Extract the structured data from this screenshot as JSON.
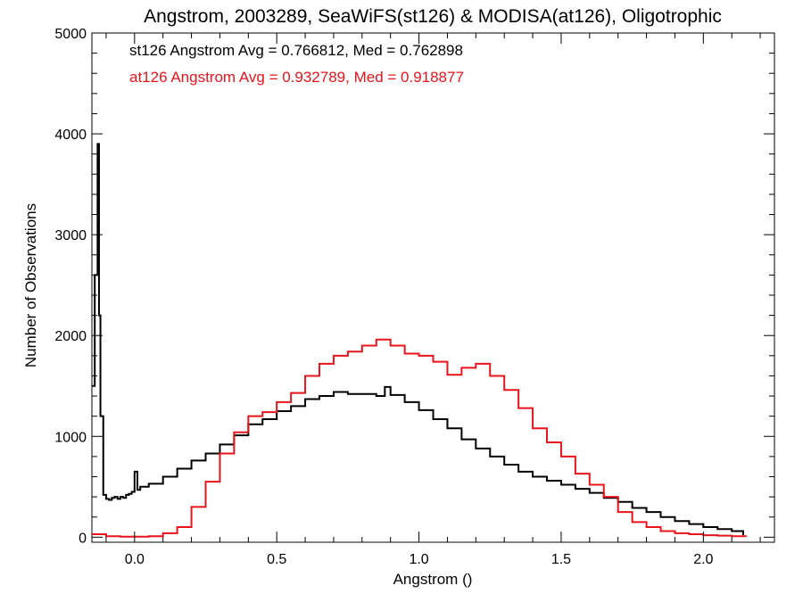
{
  "chart_data": {
    "type": "line",
    "title": "Angstrom, 2003289, SeaWiFS(st126) & MODISA(at126), Oligotrophic",
    "xlabel": "Angstrom ()",
    "ylabel": "Number of Observations",
    "xlim": [
      -0.15,
      2.25
    ],
    "ylim": [
      -50,
      5000
    ],
    "xticks": [
      0.0,
      0.5,
      1.0,
      1.5,
      2.0
    ],
    "xtick_labels": [
      "0.0",
      "0.5",
      "1.0",
      "1.5",
      "2.0"
    ],
    "yticks": [
      0,
      1000,
      2000,
      3000,
      4000,
      5000
    ],
    "ytick_labels": [
      "0",
      "1000",
      "2000",
      "3000",
      "4000",
      "5000"
    ],
    "step": true,
    "grid": false,
    "annotations": [
      {
        "text": "st126 Angstrom Avg = 0.766812, Med = 0.762898",
        "color": "#000000"
      },
      {
        "text": "at126 Angstrom Avg = 0.932789, Med = 0.918877",
        "color": "#e8141c"
      }
    ],
    "series": [
      {
        "color": "#000000",
        "x": [
          -0.15,
          -0.14,
          -0.13,
          -0.125,
          -0.12,
          -0.11,
          -0.1,
          -0.09,
          -0.08,
          -0.07,
          -0.06,
          -0.05,
          -0.04,
          -0.03,
          -0.02,
          -0.01,
          0.0,
          0.01,
          0.02,
          0.05,
          0.1,
          0.15,
          0.2,
          0.25,
          0.3,
          0.35,
          0.4,
          0.45,
          0.5,
          0.55,
          0.6,
          0.65,
          0.7,
          0.75,
          0.8,
          0.85,
          0.88,
          0.9,
          0.95,
          1.0,
          1.05,
          1.1,
          1.15,
          1.2,
          1.25,
          1.3,
          1.35,
          1.4,
          1.45,
          1.5,
          1.55,
          1.6,
          1.65,
          1.7,
          1.75,
          1.8,
          1.85,
          1.9,
          1.95,
          2.0,
          2.05,
          2.1,
          2.14
        ],
        "y": [
          1500,
          2600,
          3900,
          2200,
          1200,
          420,
          380,
          370,
          390,
          400,
          380,
          400,
          390,
          420,
          430,
          450,
          650,
          470,
          500,
          530,
          600,
          680,
          760,
          830,
          920,
          1010,
          1120,
          1170,
          1250,
          1300,
          1370,
          1400,
          1440,
          1420,
          1420,
          1400,
          1490,
          1410,
          1340,
          1260,
          1170,
          1080,
          970,
          880,
          800,
          720,
          650,
          600,
          560,
          520,
          480,
          440,
          390,
          350,
          290,
          250,
          200,
          160,
          130,
          100,
          80,
          60,
          20
        ]
      },
      {
        "color": "#e8141c",
        "x": [
          -0.15,
          -0.1,
          -0.05,
          0.0,
          0.05,
          0.1,
          0.15,
          0.2,
          0.25,
          0.3,
          0.35,
          0.4,
          0.45,
          0.5,
          0.55,
          0.6,
          0.65,
          0.7,
          0.75,
          0.8,
          0.85,
          0.9,
          0.95,
          1.0,
          1.05,
          1.1,
          1.15,
          1.2,
          1.25,
          1.3,
          1.35,
          1.4,
          1.45,
          1.5,
          1.55,
          1.6,
          1.65,
          1.7,
          1.75,
          1.8,
          1.85,
          1.9,
          1.95,
          2.0,
          2.05,
          2.1,
          2.15
        ],
        "y": [
          30,
          10,
          5,
          5,
          10,
          40,
          100,
          300,
          550,
          830,
          1040,
          1200,
          1240,
          1340,
          1430,
          1600,
          1720,
          1800,
          1840,
          1900,
          1960,
          1900,
          1820,
          1800,
          1740,
          1610,
          1680,
          1720,
          1600,
          1460,
          1280,
          1080,
          940,
          800,
          630,
          520,
          400,
          250,
          150,
          100,
          60,
          40,
          30,
          20,
          15,
          10,
          5
        ]
      }
    ]
  }
}
